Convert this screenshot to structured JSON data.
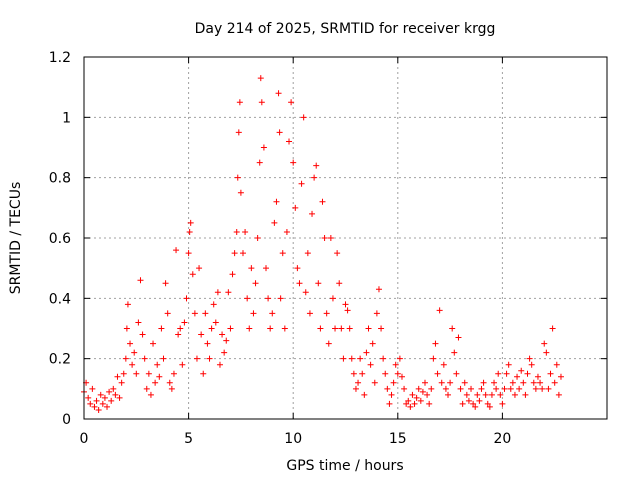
{
  "chart_data": {
    "type": "scatter",
    "title": "Day 214 of 2025, SRMTID for receiver krgg",
    "xlabel": "GPS time / hours",
    "ylabel": "SRMTID / TECUs",
    "xlim": [
      0,
      25
    ],
    "ylim": [
      0,
      1.2
    ],
    "xticks": [
      0,
      5,
      10,
      15,
      20
    ],
    "xtick_labels": [
      "0",
      "5",
      "10",
      "15",
      "20"
    ],
    "yticks": [
      0,
      0.2,
      0.4,
      0.6,
      0.8,
      1.0,
      1.2
    ],
    "ytick_labels": [
      "0",
      "0.2",
      "0.4",
      "0.6",
      "0.8",
      "1",
      "1.2"
    ],
    "grid": true,
    "marker": "+",
    "color": "#ff0000",
    "series": [
      {
        "name": "SRMTID",
        "points": [
          [
            0.0,
            0.09
          ],
          [
            0.1,
            0.12
          ],
          [
            0.2,
            0.07
          ],
          [
            0.3,
            0.05
          ],
          [
            0.4,
            0.1
          ],
          [
            0.5,
            0.04
          ],
          [
            0.6,
            0.06
          ],
          [
            0.7,
            0.03
          ],
          [
            0.8,
            0.08
          ],
          [
            0.9,
            0.05
          ],
          [
            1.0,
            0.07
          ],
          [
            1.1,
            0.04
          ],
          [
            1.2,
            0.09
          ],
          [
            1.3,
            0.06
          ],
          [
            1.4,
            0.1
          ],
          [
            1.5,
            0.08
          ],
          [
            1.6,
            0.14
          ],
          [
            1.7,
            0.07
          ],
          [
            1.8,
            0.12
          ],
          [
            1.9,
            0.15
          ],
          [
            2.0,
            0.2
          ],
          [
            2.05,
            0.3
          ],
          [
            2.1,
            0.38
          ],
          [
            2.2,
            0.25
          ],
          [
            2.3,
            0.18
          ],
          [
            2.4,
            0.22
          ],
          [
            2.5,
            0.15
          ],
          [
            2.6,
            0.32
          ],
          [
            2.7,
            0.46
          ],
          [
            2.8,
            0.28
          ],
          [
            2.9,
            0.2
          ],
          [
            3.0,
            0.1
          ],
          [
            3.1,
            0.15
          ],
          [
            3.2,
            0.08
          ],
          [
            3.3,
            0.25
          ],
          [
            3.4,
            0.12
          ],
          [
            3.5,
            0.18
          ],
          [
            3.6,
            0.14
          ],
          [
            3.7,
            0.3
          ],
          [
            3.8,
            0.2
          ],
          [
            3.9,
            0.45
          ],
          [
            4.0,
            0.35
          ],
          [
            4.1,
            0.12
          ],
          [
            4.2,
            0.1
          ],
          [
            4.3,
            0.15
          ],
          [
            4.4,
            0.56
          ],
          [
            4.5,
            0.28
          ],
          [
            4.6,
            0.3
          ],
          [
            4.7,
            0.18
          ],
          [
            4.8,
            0.32
          ],
          [
            4.9,
            0.4
          ],
          [
            5.0,
            0.55
          ],
          [
            5.05,
            0.62
          ],
          [
            5.1,
            0.65
          ],
          [
            5.2,
            0.48
          ],
          [
            5.3,
            0.35
          ],
          [
            5.4,
            0.2
          ],
          [
            5.5,
            0.5
          ],
          [
            5.6,
            0.28
          ],
          [
            5.7,
            0.15
          ],
          [
            5.8,
            0.35
          ],
          [
            5.9,
            0.25
          ],
          [
            6.0,
            0.2
          ],
          [
            6.1,
            0.3
          ],
          [
            6.2,
            0.38
          ],
          [
            6.3,
            0.32
          ],
          [
            6.4,
            0.42
          ],
          [
            6.5,
            0.18
          ],
          [
            6.6,
            0.28
          ],
          [
            6.7,
            0.22
          ],
          [
            6.8,
            0.26
          ],
          [
            6.9,
            0.42
          ],
          [
            7.0,
            0.3
          ],
          [
            7.1,
            0.48
          ],
          [
            7.2,
            0.55
          ],
          [
            7.3,
            0.62
          ],
          [
            7.35,
            0.8
          ],
          [
            7.4,
            0.95
          ],
          [
            7.45,
            1.05
          ],
          [
            7.5,
            0.75
          ],
          [
            7.6,
            0.55
          ],
          [
            7.7,
            0.62
          ],
          [
            7.8,
            0.4
          ],
          [
            7.9,
            0.3
          ],
          [
            8.0,
            0.5
          ],
          [
            8.1,
            0.35
          ],
          [
            8.2,
            0.45
          ],
          [
            8.3,
            0.6
          ],
          [
            8.4,
            0.85
          ],
          [
            8.45,
            1.13
          ],
          [
            8.5,
            1.05
          ],
          [
            8.6,
            0.9
          ],
          [
            8.7,
            0.5
          ],
          [
            8.8,
            0.4
          ],
          [
            8.9,
            0.3
          ],
          [
            9.0,
            0.35
          ],
          [
            9.1,
            0.65
          ],
          [
            9.2,
            0.72
          ],
          [
            9.3,
            1.08
          ],
          [
            9.35,
            0.95
          ],
          [
            9.4,
            0.4
          ],
          [
            9.5,
            0.55
          ],
          [
            9.6,
            0.3
          ],
          [
            9.7,
            0.62
          ],
          [
            9.8,
            0.92
          ],
          [
            9.9,
            1.05
          ],
          [
            10.0,
            0.85
          ],
          [
            10.1,
            0.7
          ],
          [
            10.2,
            0.5
          ],
          [
            10.3,
            0.45
          ],
          [
            10.4,
            0.78
          ],
          [
            10.5,
            1.0
          ],
          [
            10.6,
            0.42
          ],
          [
            10.7,
            0.55
          ],
          [
            10.8,
            0.35
          ],
          [
            10.9,
            0.68
          ],
          [
            11.0,
            0.8
          ],
          [
            11.1,
            0.84
          ],
          [
            11.2,
            0.45
          ],
          [
            11.3,
            0.3
          ],
          [
            11.4,
            0.72
          ],
          [
            11.5,
            0.6
          ],
          [
            11.6,
            0.35
          ],
          [
            11.7,
            0.25
          ],
          [
            11.8,
            0.6
          ],
          [
            11.9,
            0.4
          ],
          [
            12.0,
            0.3
          ],
          [
            12.1,
            0.55
          ],
          [
            12.2,
            0.45
          ],
          [
            12.3,
            0.3
          ],
          [
            12.4,
            0.2
          ],
          [
            12.5,
            0.38
          ],
          [
            12.6,
            0.36
          ],
          [
            12.7,
            0.3
          ],
          [
            12.8,
            0.2
          ],
          [
            12.9,
            0.15
          ],
          [
            13.0,
            0.1
          ],
          [
            13.1,
            0.12
          ],
          [
            13.2,
            0.2
          ],
          [
            13.3,
            0.15
          ],
          [
            13.4,
            0.08
          ],
          [
            13.5,
            0.22
          ],
          [
            13.6,
            0.3
          ],
          [
            13.7,
            0.18
          ],
          [
            13.8,
            0.25
          ],
          [
            13.9,
            0.12
          ],
          [
            14.0,
            0.35
          ],
          [
            14.1,
            0.43
          ],
          [
            14.2,
            0.3
          ],
          [
            14.3,
            0.2
          ],
          [
            14.4,
            0.15
          ],
          [
            14.5,
            0.1
          ],
          [
            14.6,
            0.05
          ],
          [
            14.7,
            0.08
          ],
          [
            14.8,
            0.12
          ],
          [
            14.9,
            0.18
          ],
          [
            15.0,
            0.15
          ],
          [
            15.1,
            0.2
          ],
          [
            15.2,
            0.14
          ],
          [
            15.3,
            0.1
          ],
          [
            15.4,
            0.05
          ],
          [
            15.5,
            0.06
          ],
          [
            15.6,
            0.04
          ],
          [
            15.7,
            0.08
          ],
          [
            15.8,
            0.05
          ],
          [
            15.9,
            0.07
          ],
          [
            16.0,
            0.1
          ],
          [
            16.1,
            0.06
          ],
          [
            16.2,
            0.09
          ],
          [
            16.3,
            0.12
          ],
          [
            16.4,
            0.08
          ],
          [
            16.5,
            0.05
          ],
          [
            16.6,
            0.1
          ],
          [
            16.7,
            0.2
          ],
          [
            16.8,
            0.25
          ],
          [
            16.9,
            0.15
          ],
          [
            17.0,
            0.36
          ],
          [
            17.1,
            0.12
          ],
          [
            17.2,
            0.18
          ],
          [
            17.3,
            0.1
          ],
          [
            17.4,
            0.08
          ],
          [
            17.5,
            0.12
          ],
          [
            17.6,
            0.3
          ],
          [
            17.7,
            0.22
          ],
          [
            17.8,
            0.15
          ],
          [
            17.9,
            0.27
          ],
          [
            18.0,
            0.1
          ],
          [
            18.1,
            0.05
          ],
          [
            18.2,
            0.12
          ],
          [
            18.3,
            0.08
          ],
          [
            18.4,
            0.06
          ],
          [
            18.5,
            0.1
          ],
          [
            18.6,
            0.05
          ],
          [
            18.7,
            0.04
          ],
          [
            18.8,
            0.08
          ],
          [
            18.9,
            0.06
          ],
          [
            19.0,
            0.1
          ],
          [
            19.1,
            0.12
          ],
          [
            19.2,
            0.08
          ],
          [
            19.3,
            0.05
          ],
          [
            19.4,
            0.04
          ],
          [
            19.5,
            0.08
          ],
          [
            19.6,
            0.12
          ],
          [
            19.7,
            0.1
          ],
          [
            19.8,
            0.15
          ],
          [
            19.9,
            0.08
          ],
          [
            20.0,
            0.05
          ],
          [
            20.1,
            0.1
          ],
          [
            20.2,
            0.15
          ],
          [
            20.3,
            0.18
          ],
          [
            20.4,
            0.1
          ],
          [
            20.5,
            0.12
          ],
          [
            20.6,
            0.08
          ],
          [
            20.7,
            0.14
          ],
          [
            20.8,
            0.1
          ],
          [
            20.9,
            0.16
          ],
          [
            21.0,
            0.12
          ],
          [
            21.1,
            0.08
          ],
          [
            21.2,
            0.15
          ],
          [
            21.3,
            0.2
          ],
          [
            21.4,
            0.18
          ],
          [
            21.5,
            0.12
          ],
          [
            21.6,
            0.1
          ],
          [
            21.7,
            0.14
          ],
          [
            21.8,
            0.12
          ],
          [
            21.9,
            0.1
          ],
          [
            22.0,
            0.25
          ],
          [
            22.1,
            0.22
          ],
          [
            22.2,
            0.1
          ],
          [
            22.3,
            0.15
          ],
          [
            22.4,
            0.3
          ],
          [
            22.5,
            0.12
          ],
          [
            22.6,
            0.18
          ],
          [
            22.7,
            0.08
          ],
          [
            22.8,
            0.14
          ]
        ]
      }
    ]
  }
}
